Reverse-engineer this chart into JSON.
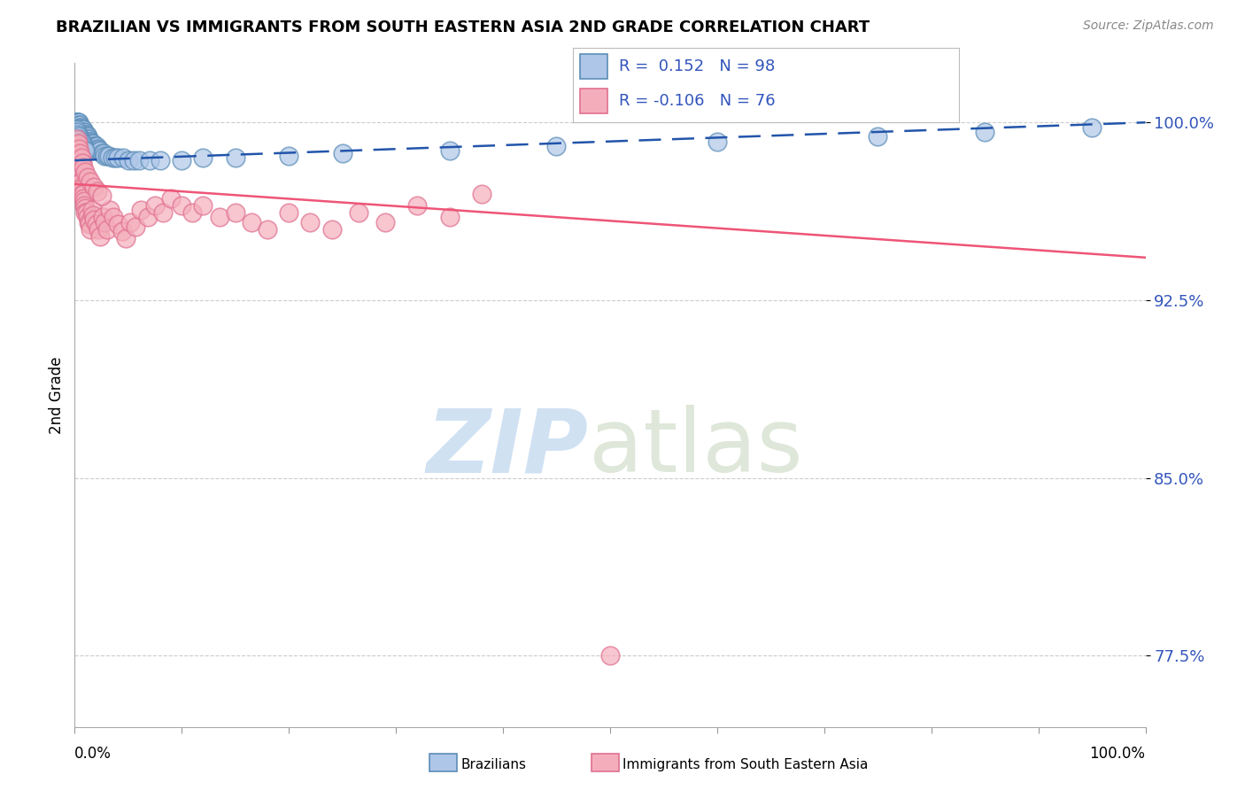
{
  "title": "BRAZILIAN VS IMMIGRANTS FROM SOUTH EASTERN ASIA 2ND GRADE CORRELATION CHART",
  "source": "Source: ZipAtlas.com",
  "ylabel": "2nd Grade",
  "ytick_values": [
    0.775,
    0.85,
    0.925,
    1.0
  ],
  "legend_label1": "Brazilians",
  "legend_label2": "Immigrants from South Eastern Asia",
  "R1": 0.152,
  "N1": 98,
  "R2": -0.106,
  "N2": 76,
  "blue_color": "#AEC6E8",
  "pink_color": "#F4AEBB",
  "blue_edge_color": "#5B8DB8",
  "pink_edge_color": "#E07090",
  "blue_line_color": "#2255AA",
  "pink_line_color": "#EE5577",
  "blue_line_y0": 0.984,
  "blue_line_y1": 1.0,
  "pink_line_y0": 0.974,
  "pink_line_y1": 0.943,
  "blue_scatter_x": [
    0.001,
    0.001,
    0.001,
    0.001,
    0.002,
    0.002,
    0.002,
    0.002,
    0.002,
    0.003,
    0.003,
    0.003,
    0.003,
    0.003,
    0.003,
    0.003,
    0.004,
    0.004,
    0.004,
    0.004,
    0.004,
    0.005,
    0.005,
    0.005,
    0.005,
    0.005,
    0.006,
    0.006,
    0.006,
    0.006,
    0.007,
    0.007,
    0.007,
    0.007,
    0.008,
    0.008,
    0.008,
    0.009,
    0.009,
    0.009,
    0.01,
    0.01,
    0.01,
    0.011,
    0.011,
    0.012,
    0.012,
    0.013,
    0.013,
    0.014,
    0.014,
    0.015,
    0.015,
    0.016,
    0.017,
    0.017,
    0.018,
    0.019,
    0.02,
    0.02,
    0.022,
    0.022,
    0.024,
    0.025,
    0.027,
    0.028,
    0.03,
    0.032,
    0.035,
    0.038,
    0.04,
    0.045,
    0.05,
    0.055,
    0.06,
    0.07,
    0.08,
    0.1,
    0.12,
    0.15,
    0.2,
    0.25,
    0.35,
    0.45,
    0.6,
    0.75,
    0.85,
    0.95,
    0.001,
    0.002,
    0.003,
    0.004,
    0.005,
    0.006,
    0.007,
    0.008,
    0.009,
    0.01
  ],
  "blue_scatter_y": [
    1.0,
    1.0,
    0.999,
    0.998,
    1.0,
    1.0,
    0.999,
    0.998,
    0.997,
    1.0,
    1.0,
    0.999,
    0.998,
    0.997,
    0.996,
    0.995,
    1.0,
    0.999,
    0.998,
    0.997,
    0.996,
    0.999,
    0.998,
    0.997,
    0.996,
    0.995,
    0.998,
    0.997,
    0.996,
    0.995,
    0.997,
    0.996,
    0.995,
    0.994,
    0.997,
    0.996,
    0.995,
    0.996,
    0.995,
    0.994,
    0.995,
    0.994,
    0.993,
    0.995,
    0.994,
    0.994,
    0.993,
    0.993,
    0.992,
    0.992,
    0.991,
    0.992,
    0.991,
    0.991,
    0.991,
    0.99,
    0.99,
    0.99,
    0.99,
    0.989,
    0.989,
    0.988,
    0.988,
    0.987,
    0.987,
    0.986,
    0.986,
    0.986,
    0.985,
    0.985,
    0.985,
    0.985,
    0.984,
    0.984,
    0.984,
    0.984,
    0.984,
    0.984,
    0.985,
    0.985,
    0.986,
    0.987,
    0.988,
    0.99,
    0.992,
    0.994,
    0.996,
    0.998,
    0.997,
    0.996,
    0.995,
    0.994,
    0.993,
    0.992,
    0.991,
    0.99,
    0.989,
    0.988
  ],
  "pink_scatter_x": [
    0.001,
    0.001,
    0.002,
    0.002,
    0.003,
    0.003,
    0.003,
    0.004,
    0.004,
    0.005,
    0.005,
    0.006,
    0.006,
    0.007,
    0.007,
    0.008,
    0.008,
    0.009,
    0.009,
    0.01,
    0.01,
    0.011,
    0.012,
    0.013,
    0.014,
    0.015,
    0.016,
    0.017,
    0.018,
    0.02,
    0.022,
    0.024,
    0.026,
    0.028,
    0.03,
    0.033,
    0.036,
    0.04,
    0.044,
    0.048,
    0.052,
    0.057,
    0.062,
    0.068,
    0.075,
    0.082,
    0.09,
    0.1,
    0.11,
    0.12,
    0.135,
    0.15,
    0.165,
    0.18,
    0.2,
    0.22,
    0.24,
    0.265,
    0.29,
    0.32,
    0.35,
    0.38,
    0.002,
    0.003,
    0.004,
    0.005,
    0.006,
    0.007,
    0.008,
    0.01,
    0.012,
    0.015,
    0.018,
    0.021,
    0.025,
    0.5
  ],
  "pink_scatter_y": [
    0.99,
    0.988,
    0.987,
    0.985,
    0.984,
    0.982,
    0.98,
    0.979,
    0.977,
    0.977,
    0.975,
    0.975,
    0.973,
    0.972,
    0.97,
    0.97,
    0.968,
    0.967,
    0.965,
    0.964,
    0.962,
    0.962,
    0.96,
    0.958,
    0.957,
    0.955,
    0.963,
    0.961,
    0.959,
    0.957,
    0.955,
    0.952,
    0.96,
    0.958,
    0.955,
    0.963,
    0.96,
    0.957,
    0.954,
    0.951,
    0.958,
    0.956,
    0.963,
    0.96,
    0.965,
    0.962,
    0.968,
    0.965,
    0.962,
    0.965,
    0.96,
    0.962,
    0.958,
    0.955,
    0.962,
    0.958,
    0.955,
    0.962,
    0.958,
    0.965,
    0.96,
    0.97,
    0.993,
    0.991,
    0.989,
    0.987,
    0.985,
    0.983,
    0.981,
    0.979,
    0.977,
    0.975,
    0.973,
    0.971,
    0.969,
    0.775
  ],
  "xmin": 0.0,
  "xmax": 1.0,
  "ymin": 0.745,
  "ymax": 1.025,
  "background_color": "#FFFFFF",
  "grid_color": "#CCCCCC"
}
